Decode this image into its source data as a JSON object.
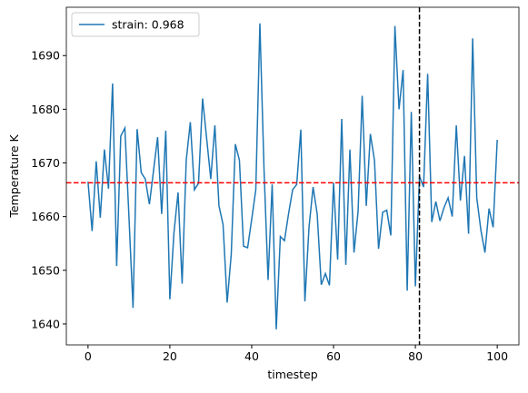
{
  "chart_data": {
    "type": "line",
    "xlabel": "timestep",
    "ylabel": "Temperature K",
    "x": [
      0,
      1,
      2,
      3,
      4,
      5,
      6,
      7,
      8,
      9,
      10,
      11,
      12,
      13,
      14,
      15,
      16,
      17,
      18,
      19,
      20,
      21,
      22,
      23,
      24,
      25,
      26,
      27,
      28,
      29,
      30,
      31,
      32,
      33,
      34,
      35,
      36,
      37,
      38,
      39,
      40,
      41,
      42,
      43,
      44,
      45,
      46,
      47,
      48,
      49,
      50,
      51,
      52,
      53,
      54,
      55,
      56,
      57,
      58,
      59,
      60,
      61,
      62,
      63,
      64,
      65,
      66,
      67,
      68,
      69,
      70,
      71,
      72,
      73,
      74,
      75,
      76,
      77,
      78,
      79,
      80,
      81,
      82,
      83,
      84,
      85,
      86,
      87,
      88,
      89,
      90,
      91,
      92,
      93,
      94,
      95,
      96,
      97,
      98,
      99,
      100
    ],
    "series": [
      {
        "name": "strain: 0.968",
        "color": "#1f77b4",
        "values": [
          1666.5,
          1657.3,
          1670.3,
          1659.8,
          1672.5,
          1665.2,
          1684.8,
          1650.8,
          1675,
          1676.5,
          1660,
          1643,
          1676.3,
          1668.2,
          1667,
          1662.3,
          1668.5,
          1674.8,
          1660.5,
          1676,
          1644.6,
          1657,
          1664.5,
          1647.5,
          1670.5,
          1677.6,
          1665,
          1666.2,
          1682,
          1674.5,
          1667,
          1677,
          1662,
          1658.5,
          1644,
          1653,
          1673.5,
          1670.5,
          1654.5,
          1654.2,
          1659.5,
          1665,
          1696,
          1669,
          1648.2,
          1666,
          1639,
          1656.3,
          1655.5,
          1660.5,
          1665,
          1666,
          1676.2,
          1644.2,
          1658,
          1665.5,
          1660.5,
          1647.3,
          1649.4,
          1647.2,
          1666.3,
          1652,
          1678.2,
          1651,
          1672.5,
          1653.3,
          1661,
          1682.5,
          1662,
          1675.4,
          1670.5,
          1654,
          1660.8,
          1661.2,
          1656.5,
          1695.5,
          1680,
          1687.3,
          1646.2,
          1679.5,
          1647,
          1667.5,
          1665.5,
          1686.6,
          1659,
          1662.8,
          1659.2,
          1661.7,
          1663.5,
          1660,
          1677,
          1663,
          1671.3,
          1656.8,
          1693.2,
          1663.5,
          1657.5,
          1653.3,
          1661.5,
          1658,
          1674.3
        ]
      }
    ],
    "hline": {
      "value": 1666.3,
      "color": "#ff0000"
    },
    "vline": {
      "value": 81,
      "color": "#000000"
    },
    "xlim": [
      -5.3,
      105.3
    ],
    "ylim": [
      1636.1,
      1699
    ],
    "xticks": [
      0,
      20,
      40,
      60,
      80,
      100
    ],
    "yticks": [
      1640,
      1650,
      1660,
      1670,
      1680,
      1690
    ],
    "legend": "upper left"
  }
}
